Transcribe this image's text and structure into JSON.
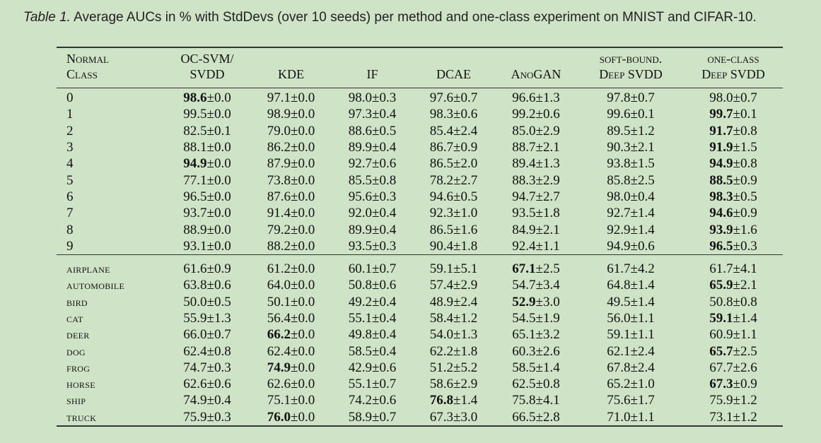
{
  "caption": {
    "label": "Table 1.",
    "text": "Average AUCs in % with StdDevs (over 10 seeds) per method and one-class experiment on MNIST and CIFAR-10."
  },
  "header": {
    "class_line1": "Normal",
    "class_line2": "Class",
    "ocsvm_line1": "OC-SVM/",
    "ocsvm_line2": "SVDD",
    "kde": "KDE",
    "if": "IF",
    "dcae": "DCAE",
    "anogan": "AnoGAN",
    "soft_line1": "soft-bound.",
    "soft_line2": "Deep SVDD",
    "oneclass_line1": "one-class",
    "oneclass_line2": "Deep SVDD"
  },
  "mnist_rows": [
    {
      "cls": "0",
      "vals": [
        "98.6±0.0",
        "97.1±0.0",
        "98.0±0.3",
        "97.6±0.7",
        "96.6±1.3",
        "97.8±0.7",
        "98.0±0.7"
      ],
      "bold": [
        0
      ]
    },
    {
      "cls": "1",
      "vals": [
        "99.5±0.0",
        "98.9±0.0",
        "97.3±0.4",
        "98.3±0.6",
        "99.2±0.6",
        "99.6±0.1",
        "99.7±0.1"
      ],
      "bold": [
        6
      ]
    },
    {
      "cls": "2",
      "vals": [
        "82.5±0.1",
        "79.0±0.0",
        "88.6±0.5",
        "85.4±2.4",
        "85.0±2.9",
        "89.5±1.2",
        "91.7±0.8"
      ],
      "bold": [
        6
      ]
    },
    {
      "cls": "3",
      "vals": [
        "88.1±0.0",
        "86.2±0.0",
        "89.9±0.4",
        "86.7±0.9",
        "88.7±2.1",
        "90.3±2.1",
        "91.9±1.5"
      ],
      "bold": [
        6
      ]
    },
    {
      "cls": "4",
      "vals": [
        "94.9±0.0",
        "87.9±0.0",
        "92.7±0.6",
        "86.5±2.0",
        "89.4±1.3",
        "93.8±1.5",
        "94.9±0.8"
      ],
      "bold": [
        0,
        6
      ]
    },
    {
      "cls": "5",
      "vals": [
        "77.1±0.0",
        "73.8±0.0",
        "85.5±0.8",
        "78.2±2.7",
        "88.3±2.9",
        "85.8±2.5",
        "88.5±0.9"
      ],
      "bold": [
        6
      ]
    },
    {
      "cls": "6",
      "vals": [
        "96.5±0.0",
        "87.6±0.0",
        "95.6±0.3",
        "94.6±0.5",
        "94.7±2.7",
        "98.0±0.4",
        "98.3±0.5"
      ],
      "bold": [
        6
      ]
    },
    {
      "cls": "7",
      "vals": [
        "93.7±0.0",
        "91.4±0.0",
        "92.0±0.4",
        "92.3±1.0",
        "93.5±1.8",
        "92.7±1.4",
        "94.6±0.9"
      ],
      "bold": [
        6
      ]
    },
    {
      "cls": "8",
      "vals": [
        "88.9±0.0",
        "79.2±0.0",
        "89.9±0.4",
        "86.5±1.6",
        "84.9±2.1",
        "92.9±1.4",
        "93.9±1.6"
      ],
      "bold": [
        6
      ]
    },
    {
      "cls": "9",
      "vals": [
        "93.1±0.0",
        "88.2±0.0",
        "93.5±0.3",
        "90.4±1.8",
        "92.4±1.1",
        "94.9±0.6",
        "96.5±0.3"
      ],
      "bold": [
        6
      ]
    }
  ],
  "cifar_rows": [
    {
      "cls": "airplane",
      "vals": [
        "61.6±0.9",
        "61.2±0.0",
        "60.1±0.7",
        "59.1±5.1",
        "67.1±2.5",
        "61.7±4.2",
        "61.7±4.1"
      ],
      "bold": [
        4
      ]
    },
    {
      "cls": "automobile",
      "vals": [
        "63.8±0.6",
        "64.0±0.0",
        "50.8±0.6",
        "57.4±2.9",
        "54.7±3.4",
        "64.8±1.4",
        "65.9±2.1"
      ],
      "bold": [
        6
      ]
    },
    {
      "cls": "bird",
      "vals": [
        "50.0±0.5",
        "50.1±0.0",
        "49.2±0.4",
        "48.9±2.4",
        "52.9±3.0",
        "49.5±1.4",
        "50.8±0.8"
      ],
      "bold": [
        4
      ]
    },
    {
      "cls": "cat",
      "vals": [
        "55.9±1.3",
        "56.4±0.0",
        "55.1±0.4",
        "58.4±1.2",
        "54.5±1.9",
        "56.0±1.1",
        "59.1±1.4"
      ],
      "bold": [
        6
      ]
    },
    {
      "cls": "deer",
      "vals": [
        "66.0±0.7",
        "66.2±0.0",
        "49.8±0.4",
        "54.0±1.3",
        "65.1±3.2",
        "59.1±1.1",
        "60.9±1.1"
      ],
      "bold": [
        1
      ]
    },
    {
      "cls": "dog",
      "vals": [
        "62.4±0.8",
        "62.4±0.0",
        "58.5±0.4",
        "62.2±1.8",
        "60.3±2.6",
        "62.1±2.4",
        "65.7±2.5"
      ],
      "bold": [
        6
      ]
    },
    {
      "cls": "frog",
      "vals": [
        "74.7±0.3",
        "74.9±0.0",
        "42.9±0.6",
        "51.2±5.2",
        "58.5±1.4",
        "67.8±2.4",
        "67.7±2.6"
      ],
      "bold": [
        1
      ]
    },
    {
      "cls": "horse",
      "vals": [
        "62.6±0.6",
        "62.6±0.0",
        "55.1±0.7",
        "58.6±2.9",
        "62.5±0.8",
        "65.2±1.0",
        "67.3±0.9"
      ],
      "bold": [
        6
      ]
    },
    {
      "cls": "ship",
      "vals": [
        "74.9±0.4",
        "75.1±0.0",
        "74.2±0.6",
        "76.8±1.4",
        "75.8±4.1",
        "75.6±1.7",
        "75.9±1.2"
      ],
      "bold": [
        3
      ]
    },
    {
      "cls": "truck",
      "vals": [
        "75.9±0.3",
        "76.0±0.0",
        "58.9±0.7",
        "67.3±3.0",
        "66.5±2.8",
        "71.0±1.1",
        "73.1±1.2"
      ],
      "bold": [
        1
      ]
    }
  ]
}
